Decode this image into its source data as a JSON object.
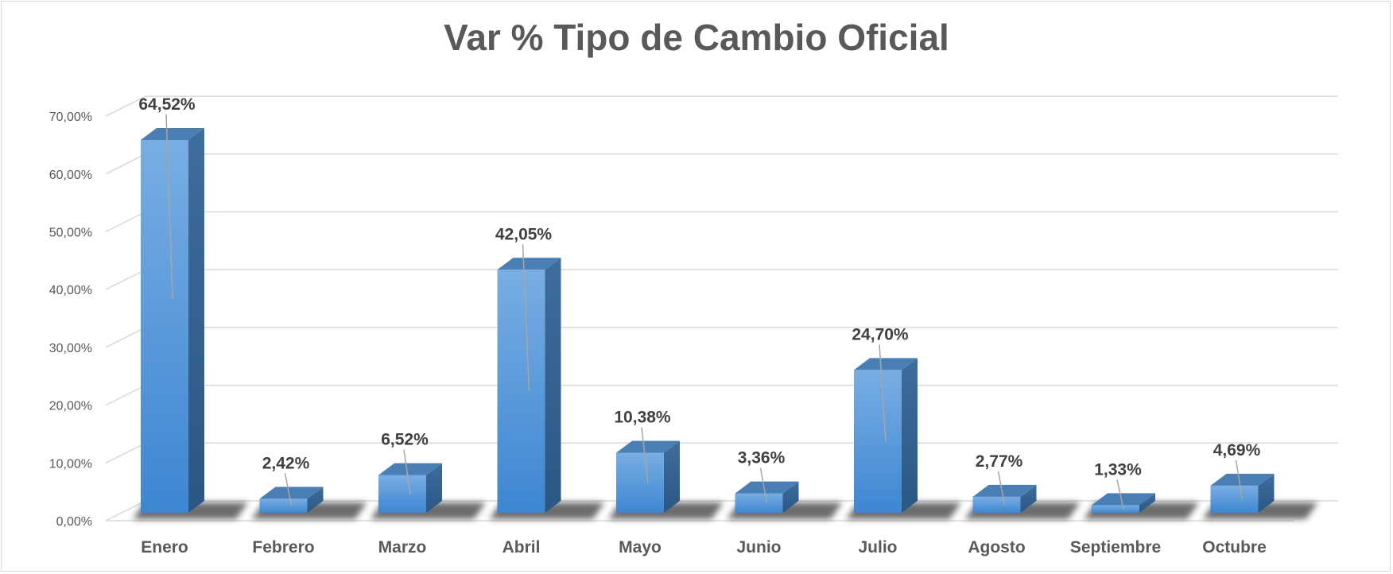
{
  "chart_data": {
    "type": "bar",
    "title": "Var % Tipo de Cambio Oficial",
    "categories": [
      "Enero",
      "Febrero",
      "Marzo",
      "Abril",
      "Mayo",
      "Junio",
      "Julio",
      "Agosto",
      "Septiembre",
      "Octubre"
    ],
    "series": [
      {
        "values": [
          64.52,
          2.42,
          6.52,
          42.05,
          10.38,
          3.36,
          24.7,
          2.77,
          1.33,
          4.69
        ]
      }
    ],
    "data_labels": [
      "64,52%",
      "2,42%",
      "6,52%",
      "42,05%",
      "10,38%",
      "3,36%",
      "24,70%",
      "2,77%",
      "1,33%",
      "4,69%"
    ],
    "y_ticks": [
      "0,00%",
      "10,00%",
      "20,00%",
      "30,00%",
      "40,00%",
      "50,00%",
      "60,00%",
      "70,00%"
    ],
    "ylim": [
      0,
      70
    ],
    "xlabel": "",
    "ylabel": "",
    "grid": true,
    "legend": "none",
    "style": "3d-column",
    "colors": {
      "bar_front": "#5b9bd5",
      "bar_side": "#2e5f8f",
      "bar_top": "#4a7fb5",
      "grid": "#d9d9d9",
      "shadow": "#3a3a3a"
    }
  }
}
